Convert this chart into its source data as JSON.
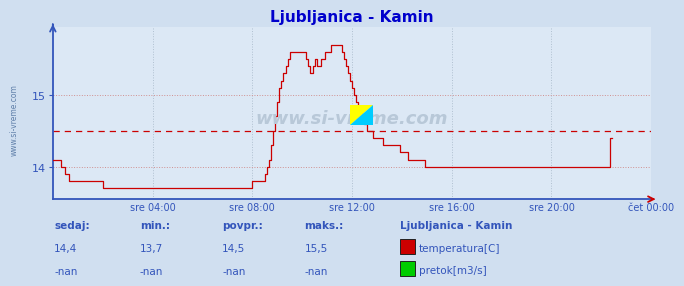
{
  "title": "Ljubljanica - Kamin",
  "title_color": "#0000cc",
  "bg_color": "#d0dff0",
  "plot_bg_color": "#dce8f5",
  "grid_color_h": "#c8a0a0",
  "grid_color_v": "#b8c8d8",
  "axis_color": "#3355bb",
  "line_color": "#cc0000",
  "avg_value": 14.5,
  "ylim_min": 13.55,
  "ylim_max": 15.95,
  "yticks": [
    14,
    15
  ],
  "xtick_labels": [
    "sre 04:00",
    "sre 08:00",
    "sre 12:00",
    "sre 16:00",
    "sre 20:00",
    "čet 00:00"
  ],
  "watermark": "www.si-vreme.com",
  "sidebar_text": "www.si-vreme.com",
  "footer_labels": [
    "sedaj:",
    "min.:",
    "povpr.:",
    "maks.:"
  ],
  "footer_values_row1": [
    "14,4",
    "13,7",
    "14,5",
    "15,5"
  ],
  "footer_values_row2": [
    "-nan",
    "-nan",
    "-nan",
    "-nan"
  ],
  "legend_title": "Ljubljanica - Kamin",
  "legend_items": [
    "temperatura[C]",
    "pretok[m3/s]"
  ],
  "legend_colors": [
    "#cc0000",
    "#00cc00"
  ],
  "temps": [
    14.1,
    14.1,
    14.1,
    14.1,
    14.0,
    14.0,
    13.9,
    13.9,
    13.8,
    13.8,
    13.8,
    13.8,
    13.8,
    13.8,
    13.8,
    13.8,
    13.8,
    13.8,
    13.8,
    13.8,
    13.8,
    13.8,
    13.8,
    13.8,
    13.7,
    13.7,
    13.7,
    13.7,
    13.7,
    13.7,
    13.7,
    13.7,
    13.7,
    13.7,
    13.7,
    13.7,
    13.7,
    13.7,
    13.7,
    13.7,
    13.7,
    13.7,
    13.7,
    13.7,
    13.7,
    13.7,
    13.7,
    13.7,
    13.7,
    13.7,
    13.7,
    13.7,
    13.7,
    13.7,
    13.7,
    13.7,
    13.7,
    13.7,
    13.7,
    13.7,
    13.7,
    13.7,
    13.7,
    13.7,
    13.7,
    13.7,
    13.7,
    13.7,
    13.7,
    13.7,
    13.7,
    13.7,
    13.7,
    13.7,
    13.7,
    13.7,
    13.7,
    13.7,
    13.7,
    13.7,
    13.7,
    13.7,
    13.7,
    13.7,
    13.7,
    13.7,
    13.7,
    13.7,
    13.7,
    13.7,
    13.7,
    13.7,
    13.7,
    13.7,
    13.7,
    13.7,
    13.8,
    13.8,
    13.8,
    13.8,
    13.8,
    13.8,
    13.9,
    14.0,
    14.1,
    14.3,
    14.5,
    14.7,
    14.9,
    15.1,
    15.2,
    15.3,
    15.4,
    15.5,
    15.6,
    15.6,
    15.6,
    15.6,
    15.6,
    15.6,
    15.6,
    15.6,
    15.5,
    15.4,
    15.3,
    15.4,
    15.5,
    15.4,
    15.4,
    15.5,
    15.5,
    15.6,
    15.6,
    15.6,
    15.7,
    15.7,
    15.7,
    15.7,
    15.7,
    15.6,
    15.5,
    15.4,
    15.3,
    15.2,
    15.1,
    15.0,
    14.9,
    14.8,
    14.8,
    14.7,
    14.6,
    14.5,
    14.5,
    14.5,
    14.4,
    14.4,
    14.4,
    14.4,
    14.4,
    14.3,
    14.3,
    14.3,
    14.3,
    14.3,
    14.3,
    14.3,
    14.3,
    14.2,
    14.2,
    14.2,
    14.2,
    14.1,
    14.1,
    14.1,
    14.1,
    14.1,
    14.1,
    14.1,
    14.1,
    14.0,
    14.0,
    14.0,
    14.0,
    14.0,
    14.0,
    14.0,
    14.0,
    14.0,
    14.0,
    14.0,
    14.0,
    14.0,
    14.0,
    14.0,
    14.0,
    14.0,
    14.0,
    14.0,
    14.0,
    14.0,
    14.0,
    14.0,
    14.0,
    14.0,
    14.0,
    14.0,
    14.0,
    14.0,
    14.0,
    14.0,
    14.0,
    14.0,
    14.0,
    14.0,
    14.0,
    14.0,
    14.0,
    14.0,
    14.0,
    14.0,
    14.0,
    14.0,
    14.0,
    14.0,
    14.0,
    14.0,
    14.0,
    14.0,
    14.0,
    14.0,
    14.0,
    14.0,
    14.0,
    14.0,
    14.0,
    14.0,
    14.0,
    14.0,
    14.0,
    14.0,
    14.0,
    14.0,
    14.0,
    14.0,
    14.0,
    14.0,
    14.0,
    14.0,
    14.0,
    14.0,
    14.0,
    14.0,
    14.0,
    14.0,
    14.0,
    14.0,
    14.0,
    14.0,
    14.0,
    14.0,
    14.0,
    14.0,
    14.0,
    14.0,
    14.0,
    14.0,
    14.0,
    14.0,
    14.4,
    14.4
  ]
}
